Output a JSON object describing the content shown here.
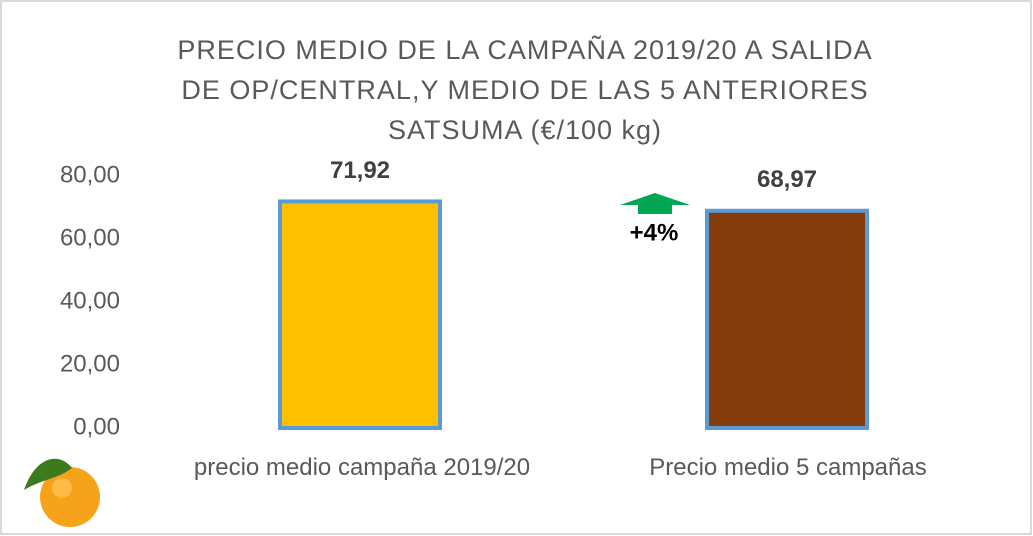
{
  "chart_data": {
    "type": "bar",
    "title": "PRECIO MEDIO DE LA CAMPAÑA 2019/20 A SALIDA DE OP/CENTRAL,Y MEDIO DE LAS 5 ANTERIORES SATSUMA (€/100 kg)",
    "categories": [
      "precio medio campaña 2019/20",
      "Precio medio 5 campañas"
    ],
    "values": [
      71.92,
      68.97
    ],
    "value_labels": [
      "71,92",
      "68,97"
    ],
    "colors": [
      "#ffc000",
      "#843c0c"
    ],
    "ylim": [
      0,
      80
    ],
    "yticks": [
      {
        "value": 0,
        "label": "0,00"
      },
      {
        "value": 20,
        "label": "20,00"
      },
      {
        "value": 40,
        "label": "40,00"
      },
      {
        "value": 60,
        "label": "60,00"
      },
      {
        "value": 80,
        "label": "80,00"
      }
    ],
    "grid": false,
    "annotation": "+4%"
  }
}
